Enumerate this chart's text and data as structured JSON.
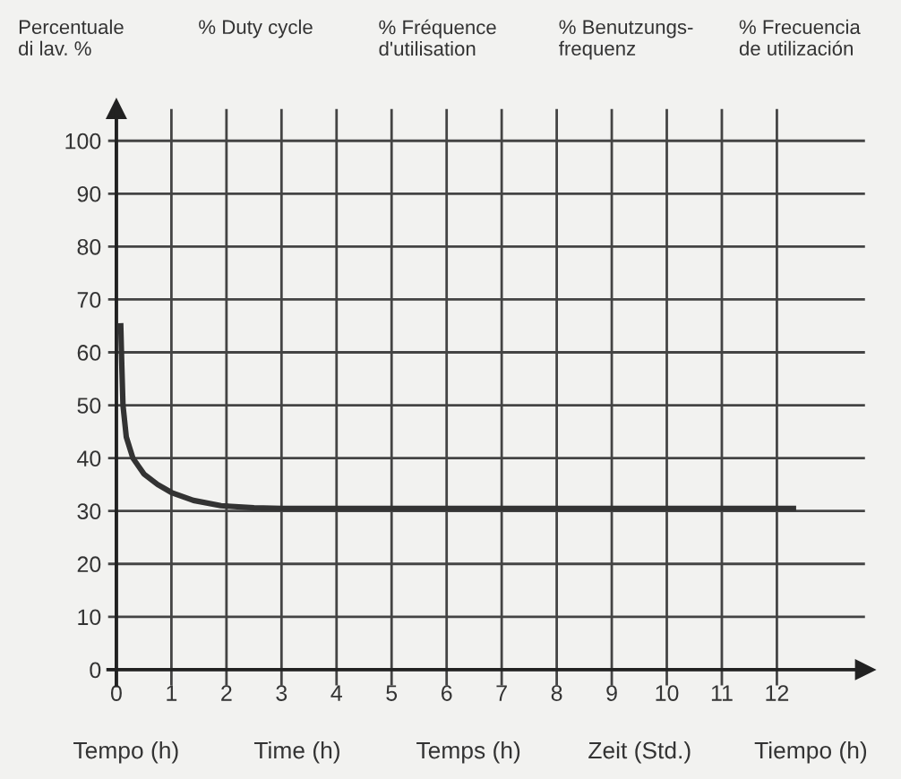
{
  "chart_data": {
    "type": "line",
    "x": [
      0.08,
      0.1,
      0.12,
      0.18,
      0.3,
      0.5,
      0.75,
      1.0,
      1.4,
      1.9,
      2.5,
      3.0,
      4,
      6,
      8,
      10,
      12.3
    ],
    "values": [
      65,
      57,
      50,
      44,
      40,
      37,
      35,
      33.5,
      32,
      31,
      30.6,
      30.5,
      30.5,
      30.5,
      30.5,
      30.5,
      30.5
    ],
    "color": "#333333",
    "marker": "none",
    "line_style": "solid",
    "xlim": [
      -0.15,
      13.6
    ],
    "ylim": [
      -3,
      106
    ],
    "xticks": [
      0,
      1,
      2,
      3,
      4,
      5,
      6,
      7,
      8,
      9,
      10,
      11,
      12
    ],
    "yticks": [
      0,
      10,
      20,
      30,
      40,
      50,
      60,
      70,
      80,
      90,
      100
    ],
    "grid": true,
    "legend": false,
    "annotations": [
      "Percentuale\ndi lav. %",
      "% Duty cycle",
      "% Fréquence\nd'utilisation",
      "% Benutzungs-\nfrequenz",
      "% Frecuencia\nde utilización",
      "Tempo (h)",
      "Time (h)",
      "Temps (h)",
      "Zeit (Std.)",
      "Tiempo (h)"
    ]
  }
}
